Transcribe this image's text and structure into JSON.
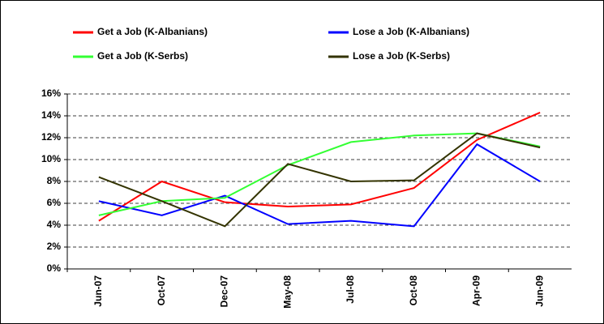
{
  "chart_data": {
    "type": "line",
    "categories": [
      "Jun-07",
      "Oct-07",
      "Dec-07",
      "May-08",
      "Jul-08",
      "Oct-08",
      "Apr-09",
      "Jun-09"
    ],
    "series": [
      {
        "name": "Get a Job (K-Albanians)",
        "color": "#ff0000",
        "values": [
          4.4,
          8.0,
          6.1,
          5.7,
          5.9,
          7.4,
          11.8,
          14.3
        ]
      },
      {
        "name": "Lose a Job (K-Albanians)",
        "color": "#0000ff",
        "values": [
          6.2,
          4.9,
          6.7,
          4.1,
          4.4,
          3.9,
          11.4,
          8.0
        ]
      },
      {
        "name": "Get a Job (K-Serbs)",
        "color": "#33ff33",
        "values": [
          4.9,
          6.2,
          6.5,
          9.5,
          11.6,
          12.2,
          12.4,
          11.2
        ]
      },
      {
        "name": "Lose a Job (K-Serbs)",
        "color": "#333300",
        "values": [
          8.4,
          6.2,
          3.9,
          9.6,
          8.0,
          8.1,
          12.4,
          11.1
        ]
      }
    ],
    "ylim": [
      0,
      16
    ],
    "yticks": [
      {
        "value": 0,
        "label": "0%"
      },
      {
        "value": 2,
        "label": "2%"
      },
      {
        "value": 4,
        "label": "4%"
      },
      {
        "value": 6,
        "label": "6%"
      },
      {
        "value": 8,
        "label": "8%"
      },
      {
        "value": 10,
        "label": "10%"
      },
      {
        "value": 12,
        "label": "12%"
      },
      {
        "value": 14,
        "label": "14%"
      },
      {
        "value": 16,
        "label": "16%"
      }
    ],
    "grid": true
  }
}
